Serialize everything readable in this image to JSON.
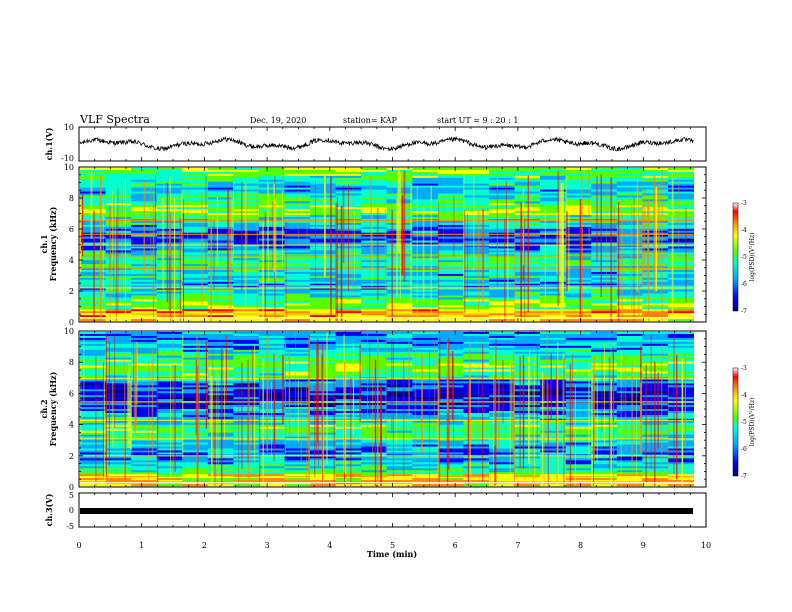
{
  "header": {
    "title": "VLF Spectra",
    "date": "Dec. 19, 2020",
    "station": "station= KAP",
    "start": "start  UT  =   9  : 20 : 1"
  },
  "chart_data": {
    "type": "heatmap",
    "x_axis": {
      "label": "Time  (min)",
      "range": [
        0,
        10
      ],
      "ticks": [
        "0",
        "1",
        "2",
        "3",
        "4",
        "5",
        "6",
        "7",
        "8",
        "9",
        "10"
      ],
      "data_end": 9.8
    },
    "panels": [
      {
        "id": "ch1-waveform",
        "type": "line",
        "ylabel": "ch.1(V)",
        "ylim": [
          -10,
          10
        ],
        "yticks": [
          "10",
          "-10"
        ],
        "line_color": "#000000"
      },
      {
        "id": "ch1-spectrogram",
        "type": "heatmap",
        "ylabel_top": "ch.1",
        "ylabel": "Frequency  (kHz)",
        "ylim": [
          0,
          10
        ],
        "yticks": [
          "0",
          "2",
          "4",
          "6",
          "8",
          "10"
        ],
        "colorbar": {
          "label": "log(PSD)(V²/Hz)",
          "range": [
            -7,
            -3
          ],
          "ticks": [
            "-3",
            "-4",
            "-5",
            "-6",
            "-7"
          ]
        }
      },
      {
        "id": "ch2-spectrogram",
        "type": "heatmap",
        "ylabel_top": "ch.2",
        "ylabel": "Frequency  (kHz)",
        "ylim": [
          0,
          10
        ],
        "yticks": [
          "0",
          "2",
          "4",
          "6",
          "8",
          "10"
        ],
        "colorbar": {
          "label": "log(PSD)(V²/Hz)",
          "range": [
            -7,
            -3
          ],
          "ticks": [
            "-3",
            "-4",
            "-5",
            "-6",
            "-7"
          ]
        }
      },
      {
        "id": "ch3-waveform",
        "type": "line",
        "ylabel": "ch.3(V)",
        "ylim": [
          -5,
          5
        ],
        "yticks": [
          "5",
          "0",
          "-5"
        ],
        "line_color": "#000000"
      }
    ],
    "colormap": [
      "#000090",
      "#0000ff",
      "#00aaff",
      "#00ffcc",
      "#55ff00",
      "#ffff00",
      "#ff8800",
      "#ff0000",
      "#ffffff"
    ]
  }
}
